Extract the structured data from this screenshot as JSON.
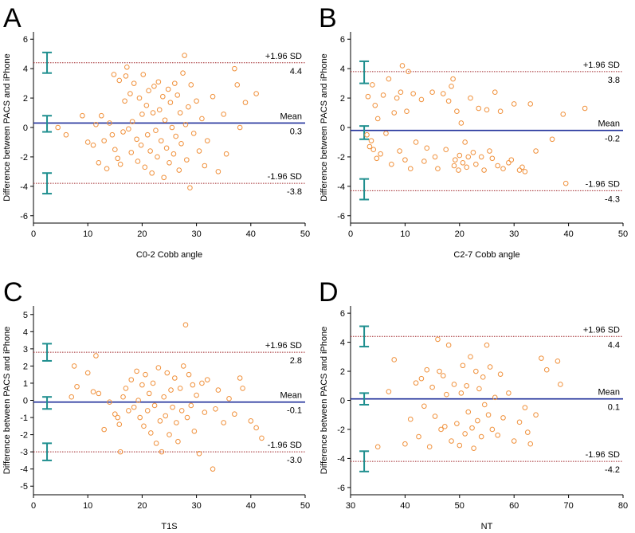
{
  "colors": {
    "axis": "#000000",
    "mean_line": "#1f2f9a",
    "limit_line": "#a0262a",
    "points": "#f0913c",
    "ci_bars": "#1f8f8f",
    "text": "#000000"
  },
  "chart_data": [
    {
      "panel_label": "A",
      "type": "scatter",
      "xlabel": "C0-2 Cobb angle",
      "ylabel": "Difference between PACS and iPhone",
      "xlim": [
        0,
        50
      ],
      "ylim": [
        -6.5,
        6.5
      ],
      "xticks": [
        0,
        10,
        20,
        30,
        40,
        50
      ],
      "yticks": [
        -6,
        -4,
        -2,
        0,
        2,
        4,
        6
      ],
      "mean": 0.3,
      "upper_loa": 4.4,
      "lower_loa": -3.8,
      "mean_label": "Mean",
      "upper_label": "+1.96 SD",
      "lower_label": "-1.96 SD",
      "mean_value": "0.3",
      "upper_value": "4.4",
      "lower_value": "-3.8",
      "ci_x": 2.5,
      "ci": [
        [
          3.7,
          5.1
        ],
        [
          -0.3,
          0.8
        ],
        [
          -4.5,
          -3.1
        ]
      ],
      "points": [
        [
          4.5,
          0.0
        ],
        [
          6,
          -0.5
        ],
        [
          9,
          0.8
        ],
        [
          10,
          -1.0
        ],
        [
          11,
          -1.2
        ],
        [
          11.5,
          0.2
        ],
        [
          12,
          -2.4
        ],
        [
          12.5,
          0.8
        ],
        [
          13,
          -0.9
        ],
        [
          13.5,
          -2.8
        ],
        [
          14,
          0.3
        ],
        [
          14.5,
          -0.5
        ],
        [
          14.8,
          3.6
        ],
        [
          15,
          -1.5
        ],
        [
          15.5,
          -2.1
        ],
        [
          15.8,
          3.2
        ],
        [
          16,
          -2.5
        ],
        [
          16.5,
          -0.3
        ],
        [
          16.8,
          1.8
        ],
        [
          17,
          3.5
        ],
        [
          17.2,
          4.1
        ],
        [
          17.5,
          -0.1
        ],
        [
          17.8,
          2.3
        ],
        [
          18,
          -1.7
        ],
        [
          18.2,
          0.4
        ],
        [
          18.5,
          3.0
        ],
        [
          19,
          -0.8
        ],
        [
          19.2,
          -2.3
        ],
        [
          19.5,
          2.0
        ],
        [
          19.8,
          -1.2
        ],
        [
          20,
          0.9
        ],
        [
          20.2,
          3.6
        ],
        [
          20.5,
          -2.7
        ],
        [
          20.8,
          1.5
        ],
        [
          21,
          -0.5
        ],
        [
          21.2,
          2.5
        ],
        [
          21.5,
          -1.6
        ],
        [
          21.8,
          -3.1
        ],
        [
          22,
          1.0
        ],
        [
          22.2,
          2.8
        ],
        [
          22.5,
          -0.2
        ],
        [
          22.8,
          -2.0
        ],
        [
          23,
          3.1
        ],
        [
          23.2,
          1.2
        ],
        [
          23.5,
          -0.9
        ],
        [
          23.8,
          2.1
        ],
        [
          24,
          -3.4
        ],
        [
          24.2,
          0.5
        ],
        [
          24.5,
          -1.4
        ],
        [
          24.8,
          2.6
        ],
        [
          25,
          -2.4
        ],
        [
          25.2,
          1.7
        ],
        [
          25.5,
          0.0
        ],
        [
          25.8,
          -1.8
        ],
        [
          26,
          3.0
        ],
        [
          26.2,
          -0.6
        ],
        [
          26.5,
          2.2
        ],
        [
          26.8,
          -2.9
        ],
        [
          27,
          1.0
        ],
        [
          27.2,
          -1.1
        ],
        [
          27.5,
          3.7
        ],
        [
          27.8,
          4.9
        ],
        [
          28,
          0.2
        ],
        [
          28.2,
          -2.2
        ],
        [
          28.5,
          1.4
        ],
        [
          28.8,
          -4.1
        ],
        [
          29,
          2.9
        ],
        [
          29.5,
          -0.4
        ],
        [
          30,
          1.8
        ],
        [
          30.5,
          -1.6
        ],
        [
          31,
          0.6
        ],
        [
          31.5,
          -2.6
        ],
        [
          32,
          -0.9
        ],
        [
          33,
          2.1
        ],
        [
          34,
          -3.0
        ],
        [
          35,
          0.9
        ],
        [
          35.5,
          -1.8
        ],
        [
          37,
          4.0
        ],
        [
          37.5,
          2.9
        ],
        [
          38,
          0.0
        ],
        [
          39,
          1.7
        ],
        [
          41,
          2.3
        ]
      ]
    },
    {
      "panel_label": "B",
      "type": "scatter",
      "xlabel": "C2-7 Cobb angle",
      "ylabel": "Difference between PACS and iPhone",
      "xlim": [
        0,
        50
      ],
      "ylim": [
        -6.5,
        6.5
      ],
      "xticks": [
        0,
        10,
        20,
        30,
        40,
        50
      ],
      "yticks": [
        -6,
        -4,
        -2,
        0,
        2,
        4,
        6
      ],
      "mean": -0.2,
      "upper_loa": 3.8,
      "lower_loa": -4.3,
      "mean_label": "Mean",
      "upper_label": "+1.96 SD",
      "lower_label": "-1.96 SD",
      "mean_value": "-0.2",
      "upper_value": "3.8",
      "lower_value": "-4.3",
      "ci_x": 2.5,
      "ci": [
        [
          3.0,
          4.5
        ],
        [
          -0.8,
          0.1
        ],
        [
          -4.9,
          -3.5
        ]
      ],
      "points": [
        [
          3,
          -0.5
        ],
        [
          3.2,
          2.1
        ],
        [
          3.5,
          -1.3
        ],
        [
          3.8,
          -0.9
        ],
        [
          4,
          2.9
        ],
        [
          4.2,
          -1.5
        ],
        [
          4.5,
          1.5
        ],
        [
          4.8,
          -2.1
        ],
        [
          5,
          0.6
        ],
        [
          5.5,
          -1.8
        ],
        [
          6,
          2.2
        ],
        [
          6.5,
          -0.4
        ],
        [
          7,
          3.3
        ],
        [
          7.5,
          -2.5
        ],
        [
          8,
          1.0
        ],
        [
          8.5,
          2.0
        ],
        [
          9,
          -1.6
        ],
        [
          9.2,
          2.4
        ],
        [
          9.5,
          4.2
        ],
        [
          10,
          -2.2
        ],
        [
          10.3,
          1.1
        ],
        [
          10.6,
          3.8
        ],
        [
          11,
          -2.8
        ],
        [
          11.5,
          2.3
        ],
        [
          12,
          -1.0
        ],
        [
          13,
          1.9
        ],
        [
          13.5,
          -2.3
        ],
        [
          14,
          -1.4
        ],
        [
          15,
          2.4
        ],
        [
          15.5,
          -2.0
        ],
        [
          16,
          -2.8
        ],
        [
          17,
          2.3
        ],
        [
          17.5,
          -1.5
        ],
        [
          18,
          1.8
        ],
        [
          18.5,
          2.8
        ],
        [
          18.8,
          3.3
        ],
        [
          19,
          -2.6
        ],
        [
          19.2,
          -2.2
        ],
        [
          19.5,
          1.1
        ],
        [
          19.8,
          -2.9
        ],
        [
          20,
          -1.9
        ],
        [
          20.3,
          0.3
        ],
        [
          20.6,
          -2.4
        ],
        [
          21,
          -1.0
        ],
        [
          21.3,
          -2.7
        ],
        [
          21.6,
          -2.0
        ],
        [
          22,
          2.0
        ],
        [
          22.5,
          -1.7
        ],
        [
          23,
          -2.5
        ],
        [
          23.5,
          1.3
        ],
        [
          24,
          -2.0
        ],
        [
          24.5,
          -2.9
        ],
        [
          25,
          1.2
        ],
        [
          25.5,
          -1.6
        ],
        [
          26,
          -2.1
        ],
        [
          26.5,
          2.4
        ],
        [
          27,
          -2.6
        ],
        [
          27.5,
          1.1
        ],
        [
          28,
          -2.8
        ],
        [
          29,
          -2.4
        ],
        [
          29.5,
          -2.2
        ],
        [
          30,
          1.6
        ],
        [
          31,
          -2.9
        ],
        [
          31.5,
          -2.7
        ],
        [
          32,
          -3.0
        ],
        [
          33,
          1.6
        ],
        [
          34,
          -1.6
        ],
        [
          37,
          -0.8
        ],
        [
          39,
          0.9
        ],
        [
          39.5,
          -3.8
        ],
        [
          43,
          1.3
        ]
      ]
    },
    {
      "panel_label": "C",
      "type": "scatter",
      "xlabel": "T1S",
      "ylabel": "Difference between PACS and iPhone",
      "xlim": [
        0,
        50
      ],
      "ylim": [
        -5.5,
        5.5
      ],
      "xticks": [
        0,
        10,
        20,
        30,
        40,
        50
      ],
      "yticks": [
        -5,
        -4,
        -3,
        -2,
        -1,
        0,
        1,
        2,
        3,
        4,
        5
      ],
      "mean": -0.1,
      "upper_loa": 2.8,
      "lower_loa": -3.0,
      "mean_label": "Mean",
      "upper_label": "+1.96 SD",
      "lower_label": "-1.96 SD",
      "mean_value": "-0.1",
      "upper_value": "2.8",
      "lower_value": "-3.0",
      "ci_x": 2.5,
      "ci": [
        [
          2.3,
          3.3
        ],
        [
          -0.5,
          0.2
        ],
        [
          -3.5,
          -2.5
        ]
      ],
      "points": [
        [
          7,
          0.2
        ],
        [
          7.5,
          2.0
        ],
        [
          8,
          0.8
        ],
        [
          10,
          1.6
        ],
        [
          11,
          0.5
        ],
        [
          11.5,
          2.6
        ],
        [
          12,
          0.4
        ],
        [
          13,
          -1.7
        ],
        [
          14,
          -0.1
        ],
        [
          15,
          -0.8
        ],
        [
          15.5,
          -1.0
        ],
        [
          15.8,
          -1.4
        ],
        [
          16,
          -3.0
        ],
        [
          16.5,
          0.2
        ],
        [
          17,
          0.7
        ],
        [
          17.5,
          -0.6
        ],
        [
          18,
          1.2
        ],
        [
          18.5,
          -0.4
        ],
        [
          19,
          1.7
        ],
        [
          19.3,
          0.0
        ],
        [
          19.6,
          -1.0
        ],
        [
          20,
          0.9
        ],
        [
          20.3,
          -1.5
        ],
        [
          20.6,
          1.5
        ],
        [
          21,
          -0.6
        ],
        [
          21.3,
          0.4
        ],
        [
          21.6,
          -1.9
        ],
        [
          22,
          1.0
        ],
        [
          22.3,
          -0.3
        ],
        [
          22.6,
          -2.5
        ],
        [
          23,
          1.9
        ],
        [
          23.3,
          -1.2
        ],
        [
          23.6,
          -3.0
        ],
        [
          24,
          0.2
        ],
        [
          24.3,
          -0.9
        ],
        [
          24.6,
          1.6
        ],
        [
          25,
          -2.0
        ],
        [
          25.3,
          0.6
        ],
        [
          25.6,
          -0.4
        ],
        [
          26,
          1.3
        ],
        [
          26.3,
          -1.3
        ],
        [
          26.6,
          -2.4
        ],
        [
          27,
          0.7
        ],
        [
          27.3,
          -0.6
        ],
        [
          27.6,
          2.0
        ],
        [
          28,
          4.4
        ],
        [
          28.3,
          -1.0
        ],
        [
          28.6,
          1.5
        ],
        [
          29,
          -0.3
        ],
        [
          29.3,
          0.9
        ],
        [
          29.6,
          -1.8
        ],
        [
          30,
          0.3
        ],
        [
          30.5,
          -3.1
        ],
        [
          31,
          1.0
        ],
        [
          31.5,
          -0.7
        ],
        [
          32,
          1.2
        ],
        [
          33,
          -4.0
        ],
        [
          33.5,
          -0.5
        ],
        [
          34,
          0.6
        ],
        [
          35,
          -1.3
        ],
        [
          36,
          0.1
        ],
        [
          37,
          -0.8
        ],
        [
          38,
          1.3
        ],
        [
          38.5,
          0.7
        ],
        [
          40,
          -1.2
        ],
        [
          41,
          -1.6
        ],
        [
          42,
          -2.2
        ]
      ]
    },
    {
      "panel_label": "D",
      "type": "scatter",
      "xlabel": "NT",
      "ylabel": "Difference between PACS and iPhone",
      "xlim": [
        30,
        80
      ],
      "ylim": [
        -6.5,
        6.5
      ],
      "xticks": [
        30,
        40,
        50,
        60,
        70,
        80
      ],
      "yticks": [
        -6,
        -4,
        -2,
        0,
        2,
        4,
        6
      ],
      "mean": 0.1,
      "upper_loa": 4.4,
      "lower_loa": -4.2,
      "mean_label": "Mean",
      "upper_label": "+1.96 SD",
      "lower_label": "-1.96 SD",
      "mean_value": "0.1",
      "upper_value": "4.4",
      "lower_value": "-4.2",
      "ci_x": 32.5,
      "ci": [
        [
          3.7,
          5.1
        ],
        [
          -0.3,
          0.5
        ],
        [
          -4.9,
          -3.5
        ]
      ],
      "points": [
        [
          35,
          -3.2
        ],
        [
          37,
          0.6
        ],
        [
          38,
          2.8
        ],
        [
          40,
          -3.0
        ],
        [
          41,
          -1.3
        ],
        [
          42,
          1.2
        ],
        [
          42.5,
          -2.5
        ],
        [
          43,
          1.5
        ],
        [
          43.5,
          -0.4
        ],
        [
          44,
          2.1
        ],
        [
          44.5,
          -3.2
        ],
        [
          45,
          0.9
        ],
        [
          45.5,
          -1.1
        ],
        [
          46,
          4.2
        ],
        [
          46.3,
          2.0
        ],
        [
          46.6,
          -2.0
        ],
        [
          47,
          1.7
        ],
        [
          47.3,
          -1.8
        ],
        [
          47.6,
          0.4
        ],
        [
          48,
          3.8
        ],
        [
          48.5,
          -2.8
        ],
        [
          49,
          1.1
        ],
        [
          49.5,
          -1.6
        ],
        [
          50,
          -3.1
        ],
        [
          50.3,
          0.5
        ],
        [
          50.6,
          2.4
        ],
        [
          51,
          -2.3
        ],
        [
          51.3,
          1.0
        ],
        [
          51.6,
          -0.8
        ],
        [
          52,
          3.0
        ],
        [
          52.3,
          -1.9
        ],
        [
          52.6,
          -3.3
        ],
        [
          53,
          2.0
        ],
        [
          53.3,
          -1.4
        ],
        [
          53.6,
          0.8
        ],
        [
          54,
          -2.5
        ],
        [
          54.3,
          1.6
        ],
        [
          54.6,
          -0.3
        ],
        [
          55,
          3.8
        ],
        [
          55.3,
          -1.0
        ],
        [
          55.6,
          2.3
        ],
        [
          56,
          -2.0
        ],
        [
          56.5,
          0.2
        ],
        [
          57,
          -2.4
        ],
        [
          57.5,
          1.8
        ],
        [
          58,
          -1.2
        ],
        [
          59,
          0.5
        ],
        [
          60,
          -2.8
        ],
        [
          61,
          -1.5
        ],
        [
          62,
          -0.5
        ],
        [
          62.5,
          -2.2
        ],
        [
          63,
          -3.0
        ],
        [
          64,
          -1.0
        ],
        [
          65,
          2.9
        ],
        [
          66,
          2.1
        ],
        [
          68,
          2.7
        ],
        [
          68.5,
          1.1
        ]
      ]
    }
  ]
}
